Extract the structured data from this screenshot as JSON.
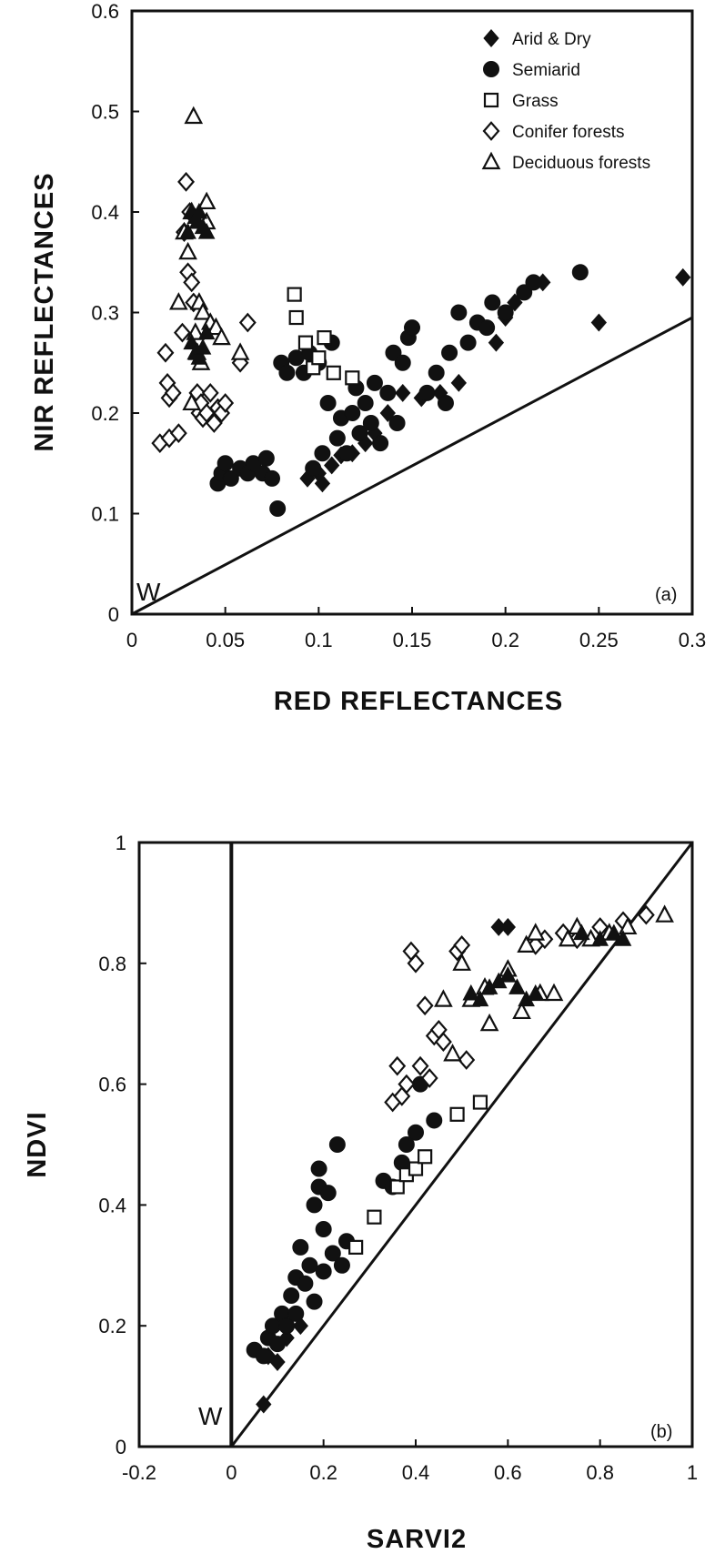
{
  "chart_data": [
    {
      "type": "scatter",
      "panel_label": "(a)",
      "xlabel": "RED REFLECTANCES",
      "ylabel": "NIR REFLECTANCES",
      "xlim": [
        0,
        0.3
      ],
      "ylim": [
        0,
        0.6
      ],
      "xticks": [
        "0",
        "0.05",
        "0.1",
        "0.15",
        "0.2",
        "0.25",
        "0.3"
      ],
      "yticks": [
        "0",
        "0.1",
        "0.2",
        "0.3",
        "0.4",
        "0.5",
        "0.6"
      ],
      "legend_position": "top-right",
      "annotation": "W",
      "line": {
        "x": [
          0,
          0.3
        ],
        "y": [
          0,
          0.295
        ]
      },
      "series": [
        {
          "name": "Arid & Dry",
          "marker": "filled-diamond",
          "points": [
            [
              0.094,
              0.135
            ],
            [
              0.1,
              0.14
            ],
            [
              0.102,
              0.13
            ],
            [
              0.107,
              0.148
            ],
            [
              0.112,
              0.158
            ],
            [
              0.118,
              0.16
            ],
            [
              0.125,
              0.17
            ],
            [
              0.13,
              0.18
            ],
            [
              0.137,
              0.2
            ],
            [
              0.145,
              0.22
            ],
            [
              0.155,
              0.215
            ],
            [
              0.165,
              0.22
            ],
            [
              0.175,
              0.23
            ],
            [
              0.195,
              0.27
            ],
            [
              0.2,
              0.295
            ],
            [
              0.205,
              0.31
            ],
            [
              0.22,
              0.33
            ],
            [
              0.25,
              0.29
            ],
            [
              0.295,
              0.335
            ]
          ]
        },
        {
          "name": "Semiarid",
          "marker": "filled-circle",
          "points": [
            [
              0.046,
              0.13
            ],
            [
              0.048,
              0.14
            ],
            [
              0.05,
              0.15
            ],
            [
              0.053,
              0.135
            ],
            [
              0.058,
              0.145
            ],
            [
              0.062,
              0.14
            ],
            [
              0.065,
              0.15
            ],
            [
              0.07,
              0.14
            ],
            [
              0.072,
              0.155
            ],
            [
              0.075,
              0.135
            ],
            [
              0.078,
              0.105
            ],
            [
              0.08,
              0.25
            ],
            [
              0.083,
              0.24
            ],
            [
              0.088,
              0.255
            ],
            [
              0.092,
              0.24
            ],
            [
              0.095,
              0.26
            ],
            [
              0.097,
              0.145
            ],
            [
              0.1,
              0.25
            ],
            [
              0.102,
              0.16
            ],
            [
              0.105,
              0.21
            ],
            [
              0.107,
              0.27
            ],
            [
              0.11,
              0.175
            ],
            [
              0.112,
              0.195
            ],
            [
              0.115,
              0.16
            ],
            [
              0.118,
              0.2
            ],
            [
              0.12,
              0.225
            ],
            [
              0.122,
              0.18
            ],
            [
              0.125,
              0.21
            ],
            [
              0.128,
              0.19
            ],
            [
              0.13,
              0.23
            ],
            [
              0.133,
              0.17
            ],
            [
              0.137,
              0.22
            ],
            [
              0.14,
              0.26
            ],
            [
              0.142,
              0.19
            ],
            [
              0.145,
              0.25
            ],
            [
              0.148,
              0.275
            ],
            [
              0.15,
              0.285
            ],
            [
              0.158,
              0.22
            ],
            [
              0.163,
              0.24
            ],
            [
              0.168,
              0.21
            ],
            [
              0.17,
              0.26
            ],
            [
              0.175,
              0.3
            ],
            [
              0.18,
              0.27
            ],
            [
              0.185,
              0.29
            ],
            [
              0.19,
              0.285
            ],
            [
              0.193,
              0.31
            ],
            [
              0.2,
              0.3
            ],
            [
              0.21,
              0.32
            ],
            [
              0.215,
              0.33
            ],
            [
              0.24,
              0.34
            ]
          ]
        },
        {
          "name": "Grass",
          "marker": "open-square",
          "points": [
            [
              0.087,
              0.318
            ],
            [
              0.088,
              0.295
            ],
            [
              0.093,
              0.27
            ],
            [
              0.097,
              0.245
            ],
            [
              0.1,
              0.255
            ],
            [
              0.103,
              0.275
            ],
            [
              0.108,
              0.24
            ],
            [
              0.118,
              0.235
            ]
          ]
        },
        {
          "name": "Conifer forests",
          "marker": "open-diamond",
          "points": [
            [
              0.015,
              0.17
            ],
            [
              0.018,
              0.26
            ],
            [
              0.019,
              0.23
            ],
            [
              0.02,
              0.215
            ],
            [
              0.02,
              0.175
            ],
            [
              0.022,
              0.22
            ],
            [
              0.025,
              0.18
            ],
            [
              0.027,
              0.28
            ],
            [
              0.028,
              0.38
            ],
            [
              0.029,
              0.43
            ],
            [
              0.03,
              0.34
            ],
            [
              0.031,
              0.4
            ],
            [
              0.032,
              0.33
            ],
            [
              0.033,
              0.31
            ],
            [
              0.035,
              0.22
            ],
            [
              0.036,
              0.2
            ],
            [
              0.037,
              0.21
            ],
            [
              0.038,
              0.195
            ],
            [
              0.04,
              0.2
            ],
            [
              0.042,
              0.22
            ],
            [
              0.044,
              0.19
            ],
            [
              0.046,
              0.205
            ],
            [
              0.048,
              0.2
            ],
            [
              0.05,
              0.21
            ],
            [
              0.058,
              0.25
            ],
            [
              0.062,
              0.29
            ]
          ]
        },
        {
          "name": "Deciduous forests",
          "marker": "open-triangle",
          "points": [
            [
              0.025,
              0.31
            ],
            [
              0.028,
              0.38
            ],
            [
              0.03,
              0.36
            ],
            [
              0.032,
              0.4
            ],
            [
              0.032,
              0.21
            ],
            [
              0.033,
              0.495
            ],
            [
              0.034,
              0.28
            ],
            [
              0.035,
              0.26
            ],
            [
              0.036,
              0.31
            ],
            [
              0.037,
              0.25
            ],
            [
              0.038,
              0.3
            ],
            [
              0.04,
              0.39
            ],
            [
              0.04,
              0.41
            ],
            [
              0.042,
              0.29
            ],
            [
              0.045,
              0.285
            ],
            [
              0.048,
              0.275
            ],
            [
              0.058,
              0.26
            ]
          ]
        },
        {
          "name": "Deciduous forests",
          "marker": "filled-triangle",
          "points": [
            [
              0.03,
              0.38
            ],
            [
              0.032,
              0.4
            ],
            [
              0.034,
              0.395
            ],
            [
              0.035,
              0.39
            ],
            [
              0.036,
              0.4
            ],
            [
              0.038,
              0.385
            ],
            [
              0.04,
              0.38
            ],
            [
              0.032,
              0.27
            ],
            [
              0.034,
              0.26
            ],
            [
              0.036,
              0.255
            ],
            [
              0.038,
              0.265
            ],
            [
              0.04,
              0.28
            ]
          ]
        }
      ]
    },
    {
      "type": "scatter",
      "panel_label": "(b)",
      "xlabel": "SARVI2",
      "ylabel": "NDVI",
      "xlim": [
        -0.2,
        1
      ],
      "ylim": [
        0,
        1
      ],
      "xticks": [
        "-0.2",
        "0",
        "0.2",
        "0.4",
        "0.6",
        "0.8",
        "1"
      ],
      "yticks": [
        "0",
        "0.2",
        "0.4",
        "0.6",
        "0.8",
        "1"
      ],
      "annotation": "W",
      "line": {
        "x": [
          0,
          1
        ],
        "y": [
          0,
          1
        ]
      },
      "series": [
        {
          "name": "Arid & Dry",
          "marker": "filled-diamond",
          "points": [
            [
              0.07,
              0.07
            ],
            [
              0.08,
              0.15
            ],
            [
              0.1,
              0.14
            ],
            [
              0.12,
              0.18
            ],
            [
              0.15,
              0.2
            ],
            [
              0.58,
              0.86
            ],
            [
              0.6,
              0.86
            ]
          ]
        },
        {
          "name": "Semiarid",
          "marker": "filled-circle",
          "points": [
            [
              0.05,
              0.16
            ],
            [
              0.07,
              0.15
            ],
            [
              0.08,
              0.18
            ],
            [
              0.09,
              0.2
            ],
            [
              0.1,
              0.17
            ],
            [
              0.11,
              0.22
            ],
            [
              0.12,
              0.2
            ],
            [
              0.13,
              0.25
            ],
            [
              0.14,
              0.28
            ],
            [
              0.14,
              0.22
            ],
            [
              0.15,
              0.33
            ],
            [
              0.16,
              0.27
            ],
            [
              0.17,
              0.3
            ],
            [
              0.18,
              0.4
            ],
            [
              0.18,
              0.24
            ],
            [
              0.19,
              0.46
            ],
            [
              0.19,
              0.43
            ],
            [
              0.2,
              0.36
            ],
            [
              0.2,
              0.29
            ],
            [
              0.21,
              0.42
            ],
            [
              0.22,
              0.32
            ],
            [
              0.23,
              0.5
            ],
            [
              0.24,
              0.3
            ],
            [
              0.25,
              0.34
            ],
            [
              0.33,
              0.44
            ],
            [
              0.35,
              0.43
            ],
            [
              0.37,
              0.47
            ],
            [
              0.38,
              0.5
            ],
            [
              0.4,
              0.52
            ],
            [
              0.41,
              0.6
            ],
            [
              0.44,
              0.54
            ]
          ]
        },
        {
          "name": "Grass",
          "marker": "open-square",
          "points": [
            [
              0.27,
              0.33
            ],
            [
              0.31,
              0.38
            ],
            [
              0.36,
              0.43
            ],
            [
              0.38,
              0.45
            ],
            [
              0.4,
              0.46
            ],
            [
              0.42,
              0.48
            ],
            [
              0.49,
              0.55
            ],
            [
              0.54,
              0.57
            ]
          ]
        },
        {
          "name": "Conifer forests",
          "marker": "open-diamond",
          "points": [
            [
              0.35,
              0.57
            ],
            [
              0.36,
              0.63
            ],
            [
              0.37,
              0.58
            ],
            [
              0.38,
              0.6
            ],
            [
              0.39,
              0.82
            ],
            [
              0.4,
              0.8
            ],
            [
              0.41,
              0.63
            ],
            [
              0.42,
              0.73
            ],
            [
              0.43,
              0.61
            ],
            [
              0.44,
              0.68
            ],
            [
              0.45,
              0.69
            ],
            [
              0.46,
              0.67
            ],
            [
              0.49,
              0.82
            ],
            [
              0.5,
              0.83
            ],
            [
              0.51,
              0.64
            ],
            [
              0.66,
              0.83
            ],
            [
              0.68,
              0.84
            ],
            [
              0.72,
              0.85
            ],
            [
              0.75,
              0.84
            ],
            [
              0.8,
              0.86
            ],
            [
              0.85,
              0.87
            ],
            [
              0.9,
              0.88
            ]
          ]
        },
        {
          "name": "Deciduous forests",
          "marker": "open-triangle",
          "points": [
            [
              0.46,
              0.74
            ],
            [
              0.48,
              0.65
            ],
            [
              0.5,
              0.8
            ],
            [
              0.52,
              0.74
            ],
            [
              0.55,
              0.76
            ],
            [
              0.56,
              0.7
            ],
            [
              0.6,
              0.79
            ],
            [
              0.63,
              0.72
            ],
            [
              0.64,
              0.83
            ],
            [
              0.66,
              0.85
            ],
            [
              0.67,
              0.75
            ],
            [
              0.7,
              0.75
            ],
            [
              0.73,
              0.84
            ],
            [
              0.75,
              0.86
            ],
            [
              0.78,
              0.84
            ],
            [
              0.82,
              0.85
            ],
            [
              0.86,
              0.86
            ],
            [
              0.94,
              0.88
            ]
          ]
        },
        {
          "name": "Deciduous forests",
          "marker": "filled-triangle",
          "points": [
            [
              0.52,
              0.75
            ],
            [
              0.54,
              0.74
            ],
            [
              0.56,
              0.76
            ],
            [
              0.58,
              0.77
            ],
            [
              0.6,
              0.78
            ],
            [
              0.62,
              0.76
            ],
            [
              0.64,
              0.74
            ],
            [
              0.66,
              0.75
            ],
            [
              0.76,
              0.85
            ],
            [
              0.8,
              0.84
            ],
            [
              0.83,
              0.85
            ],
            [
              0.85,
              0.84
            ]
          ]
        }
      ]
    }
  ]
}
